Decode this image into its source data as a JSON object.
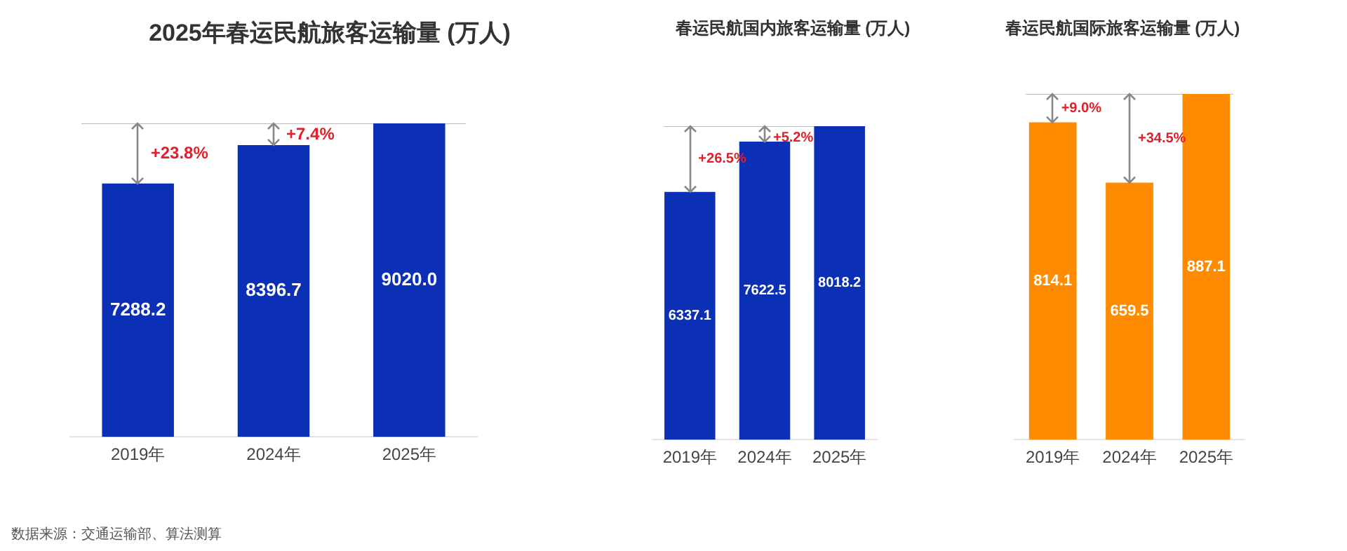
{
  "chart_data": [
    {
      "type": "bar",
      "title": "2025年春运民航旅客运输量 (万人)",
      "categories": [
        "2019年",
        "2024年",
        "2025年"
      ],
      "values": [
        7288.2,
        8396.7,
        9020.0
      ],
      "value_labels": [
        "7288.2",
        "8396.7",
        "9020.0"
      ],
      "color": "#0b2fb5",
      "ref_lines": [
        {
          "axis": "y",
          "value": 9020.0,
          "color": "#bbbbbb"
        }
      ],
      "annotations": [
        {
          "text": "+23.8%",
          "x": "2019年",
          "y": 7288.2
        },
        {
          "text": "+7.4%",
          "x": "2024年",
          "y": 8396.7
        },
        "数据来源：交通运输部、算法测算"
      ]
    },
    {
      "type": "bar",
      "title": "春运民航国内旅客运输量 (万人)",
      "categories": [
        "2019年",
        "2024年",
        "2025年"
      ],
      "values": [
        6337.1,
        7622.5,
        8018.2
      ],
      "value_labels": [
        "6337.1",
        "7622.5",
        "8018.2"
      ],
      "color": "#0b2fb5",
      "ref_lines": [
        {
          "axis": "y",
          "value": 8018.2,
          "color": "#bbbbbb"
        }
      ],
      "annotations": [
        {
          "text": "+26.5%",
          "x": "2019年",
          "y": 6337.1
        },
        {
          "text": "+5.2%",
          "x": "2024年",
          "y": 7622.5
        }
      ]
    },
    {
      "type": "bar",
      "title": "春运民航国际旅客运输量 (万人)",
      "categories": [
        "2019年",
        "2024年",
        "2025年"
      ],
      "values": [
        814.1,
        659.5,
        887.1
      ],
      "value_labels": [
        "814.1",
        "659.5",
        "887.1"
      ],
      "color": "#ff8c00",
      "ref_lines": [
        {
          "axis": "y",
          "value": 887.1,
          "color": "#bbbbbb"
        }
      ],
      "annotations": [
        {
          "text": "+9.0%",
          "x": "2019年",
          "y": 814.1
        },
        {
          "text": "+34.5%",
          "x": "2024年",
          "y": 659.5
        }
      ]
    }
  ]
}
